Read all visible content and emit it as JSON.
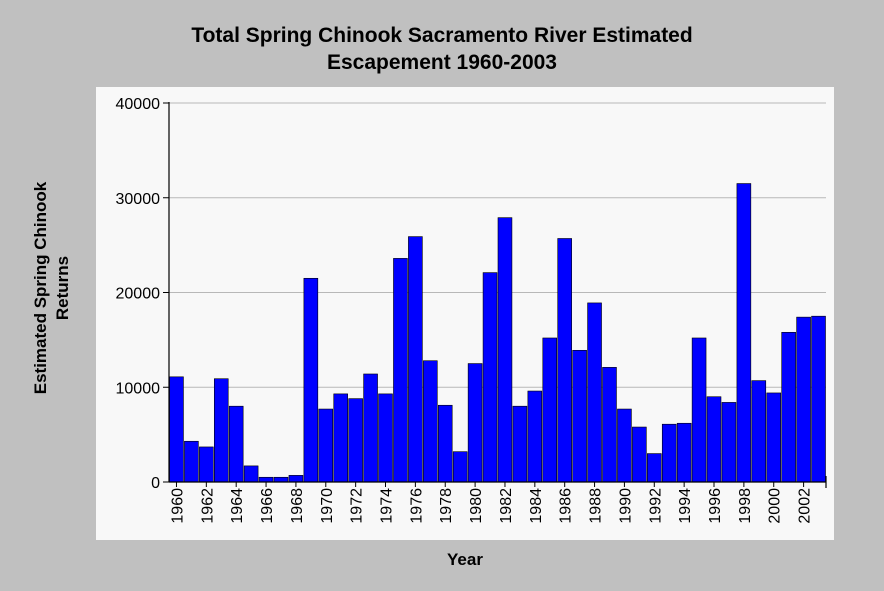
{
  "chart_data": {
    "type": "bar",
    "title_lines": [
      "Total Spring Chinook Sacramento River Estimated",
      "Escapement 1960-2003"
    ],
    "ylabel_lines": [
      "Estimated Spring Chinook",
      "Returns"
    ],
    "xlabel": "Year",
    "ylim": [
      0,
      40000
    ],
    "yticks": [
      "0",
      "10000",
      "20000",
      "30000",
      "40000"
    ],
    "grid": true,
    "legend": "none",
    "bar_color": "#0000ff",
    "categories": [
      1960,
      1961,
      1962,
      1963,
      1964,
      1965,
      1966,
      1967,
      1968,
      1969,
      1970,
      1971,
      1972,
      1973,
      1974,
      1975,
      1976,
      1977,
      1978,
      1979,
      1980,
      1981,
      1982,
      1983,
      1984,
      1985,
      1986,
      1987,
      1988,
      1989,
      1990,
      1991,
      1992,
      1993,
      1994,
      1995,
      1996,
      1997,
      1998,
      1999,
      2000,
      2001,
      2002,
      2003
    ],
    "xtick_labels": [
      "1960",
      "1962",
      "1964",
      "1966",
      "1968",
      "1970",
      "1972",
      "1974",
      "1976",
      "1978",
      "1980",
      "1982",
      "1984",
      "1986",
      "1988",
      "1990",
      "1992",
      "1994",
      "1996",
      "1998",
      "2000",
      "2002"
    ],
    "values": [
      11100,
      4300,
      3700,
      10900,
      8000,
      1700,
      500,
      500,
      700,
      21500,
      7700,
      9300,
      8800,
      11400,
      9300,
      23600,
      25900,
      12800,
      8100,
      3200,
      12500,
      22100,
      27900,
      8000,
      9600,
      15200,
      25700,
      13900,
      18900,
      12100,
      7700,
      5800,
      3000,
      6100,
      6200,
      15200,
      9000,
      8400,
      31500,
      10700,
      9400,
      15800,
      17400,
      17500
    ]
  }
}
